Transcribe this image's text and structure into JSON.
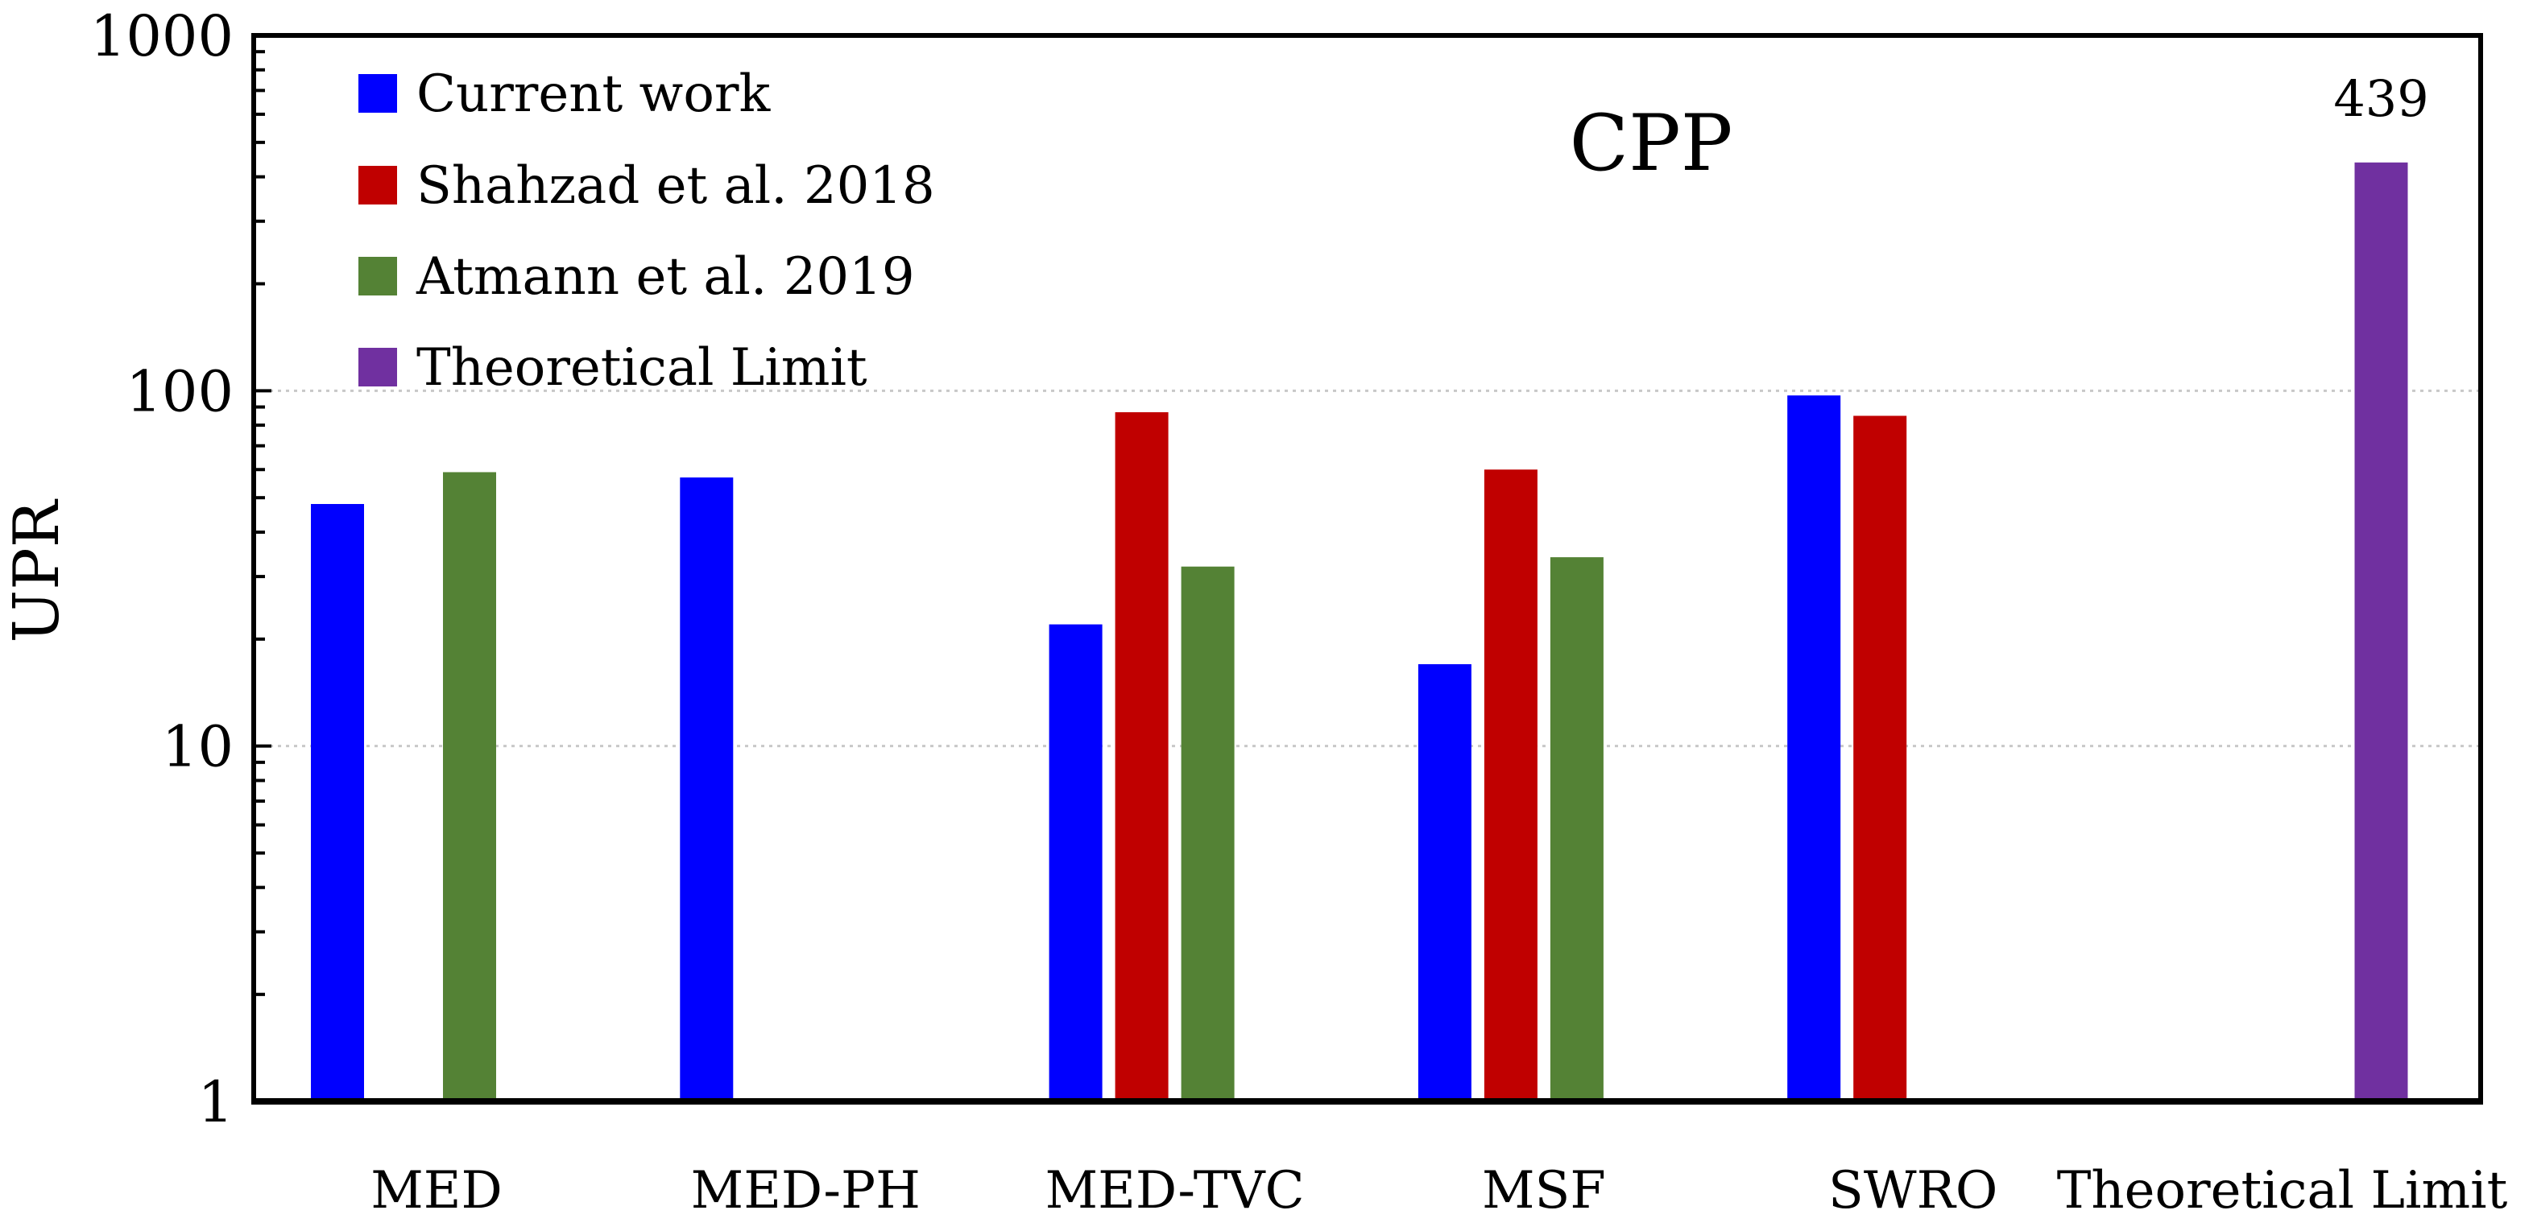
{
  "chart_data": {
    "type": "bar",
    "title": "CPP",
    "xlabel": "",
    "ylabel": "UPR",
    "yscale": "log",
    "ylim": [
      1,
      1000
    ],
    "yticks": [
      1,
      10,
      100,
      1000
    ],
    "grid": true,
    "legend_position": "top-left",
    "categories": [
      "MED",
      "MED-PH",
      "MED-TVC",
      "MSF",
      "SWRO",
      "Theoretical Limit"
    ],
    "series": [
      {
        "name": "Current work",
        "color": "#0000FF",
        "values": [
          48,
          57,
          22,
          17,
          97,
          null
        ]
      },
      {
        "name": "Shahzad et al. 2018",
        "color": "#C00000",
        "values": [
          null,
          null,
          87,
          60,
          85,
          null
        ]
      },
      {
        "name": "Atmann et al. 2019",
        "color": "#548235",
        "values": [
          59,
          null,
          32,
          34,
          null,
          null
        ]
      },
      {
        "name": "Theoretical Limit",
        "color": "#7030A0",
        "values": [
          null,
          null,
          null,
          null,
          null,
          439
        ]
      }
    ],
    "data_labels": [
      {
        "series": 3,
        "category": 5,
        "text": "439"
      }
    ]
  }
}
